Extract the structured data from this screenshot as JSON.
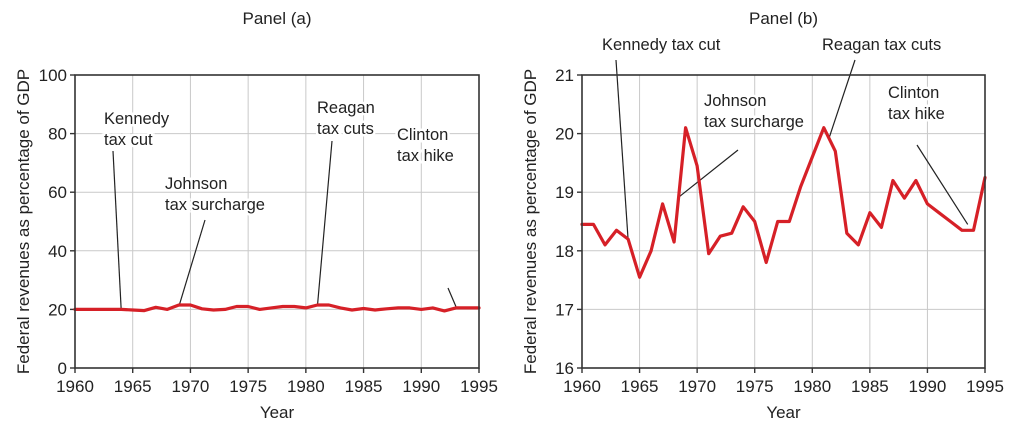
{
  "chart_data": [
    {
      "type": "line",
      "title": "Panel (a)",
      "xlabel": "Year",
      "ylabel": "Federal revenues as percentage of GDP",
      "xlim": [
        1960,
        1995
      ],
      "ylim": [
        0,
        100
      ],
      "x_ticks": [
        1960,
        1965,
        1970,
        1975,
        1980,
        1985,
        1990,
        1995
      ],
      "y_ticks": [
        0,
        20,
        40,
        60,
        80,
        100
      ],
      "grid": true,
      "color": "#d62027",
      "x": [
        1960,
        1961,
        1962,
        1963,
        1964,
        1965,
        1966,
        1967,
        1968,
        1969,
        1970,
        1971,
        1972,
        1973,
        1974,
        1975,
        1976,
        1977,
        1978,
        1979,
        1980,
        1981,
        1982,
        1983,
        1984,
        1985,
        1986,
        1987,
        1988,
        1989,
        1990,
        1991,
        1992,
        1993,
        1994,
        1995
      ],
      "values": [
        20.0,
        20.0,
        20.0,
        20.0,
        20.0,
        19.8,
        19.6,
        20.7,
        20.0,
        21.5,
        21.5,
        20.2,
        19.8,
        20.0,
        21.0,
        21.0,
        20.0,
        20.5,
        21.0,
        21.0,
        20.5,
        21.5,
        21.5,
        20.5,
        19.8,
        20.3,
        19.8,
        20.2,
        20.5,
        20.5,
        20.0,
        20.5,
        19.5,
        20.5,
        20.5,
        20.5
      ],
      "annotations": [
        {
          "lines": [
            "Kennedy",
            "tax cut"
          ],
          "x": 1964,
          "y": 20
        },
        {
          "lines": [
            "Johnson",
            "tax surcharge"
          ],
          "x": 1969,
          "y": 21
        },
        {
          "lines": [
            "Reagan",
            "tax cuts"
          ],
          "x": 1981,
          "y": 21
        },
        {
          "lines": [
            "Clinton",
            "tax hike"
          ],
          "x": 1993,
          "y": 21
        }
      ]
    },
    {
      "type": "line",
      "title": "Panel (b)",
      "xlabel": "Year",
      "ylabel": "Federal revenues as percentage of GDP",
      "xlim": [
        1960,
        1995
      ],
      "ylim": [
        16,
        21
      ],
      "x_ticks": [
        1960,
        1965,
        1970,
        1975,
        1980,
        1985,
        1990,
        1995
      ],
      "y_ticks": [
        16,
        17,
        18,
        19,
        20,
        21
      ],
      "grid": true,
      "color": "#d62027",
      "x": [
        1960,
        1961,
        1962,
        1963,
        1964,
        1965,
        1966,
        1967,
        1968,
        1969,
        1970,
        1971,
        1972,
        1973,
        1974,
        1975,
        1976,
        1977,
        1978,
        1979,
        1980,
        1981,
        1982,
        1983,
        1984,
        1985,
        1986,
        1987,
        1988,
        1989,
        1990,
        1991,
        1992,
        1993,
        1994,
        1995
      ],
      "values": [
        18.45,
        18.45,
        18.1,
        18.35,
        18.2,
        17.55,
        18.0,
        18.8,
        18.15,
        20.1,
        19.45,
        17.95,
        18.25,
        18.3,
        18.75,
        18.5,
        17.8,
        18.5,
        18.5,
        19.1,
        19.6,
        20.1,
        19.7,
        18.3,
        18.1,
        18.65,
        18.4,
        19.2,
        18.9,
        19.2,
        18.8,
        18.65,
        18.5,
        18.35,
        18.35,
        19.25
      ],
      "annotations": [
        {
          "lines": [
            "Kennedy tax cut"
          ],
          "x": 1964,
          "y": 18.2
        },
        {
          "lines": [
            "Johnson",
            "tax surcharge"
          ],
          "x": 1968.3,
          "y": 18.9
        },
        {
          "lines": [
            "Reagan tax cuts"
          ],
          "x": 1981.5,
          "y": 19.95
        },
        {
          "lines": [
            "Clinton",
            "tax hike"
          ],
          "x": 1993.5,
          "y": 18.45
        }
      ]
    }
  ]
}
